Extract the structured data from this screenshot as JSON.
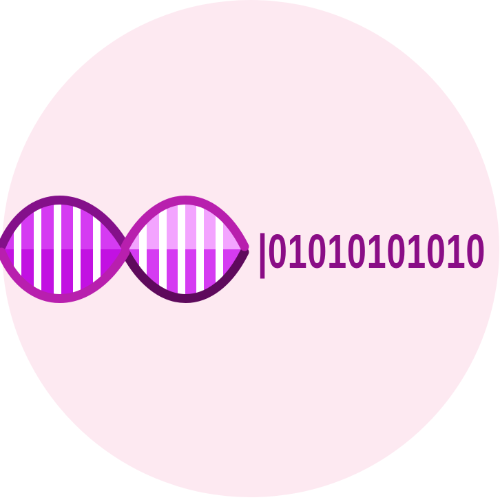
{
  "logo": {
    "icon_name": "dna-helix-icon",
    "binary_string": "|01010101010",
    "colors": {
      "background_circle": "#fde9f1",
      "text": "#8a0d86",
      "strand_dark": "#5e0a5c",
      "strand_mid": "#84108a",
      "strand_light": "#b81fae",
      "rung_bright": "#d53bf2",
      "rung_deep": "#c211e2",
      "rung_pale": "#f3a4ff",
      "rung_white": "#ffffff",
      "rung_shadow": "#a8189b"
    }
  }
}
